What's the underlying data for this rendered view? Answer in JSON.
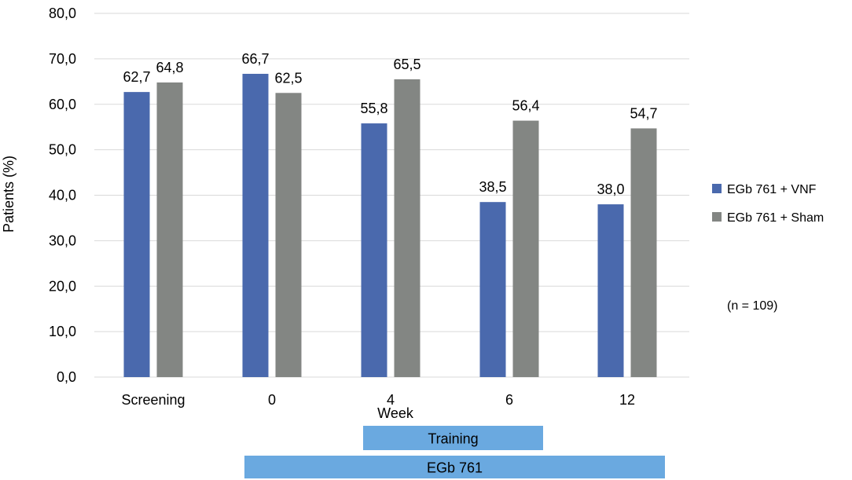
{
  "chart_data": {
    "type": "bar",
    "categories": [
      "Screening",
      "0",
      "4",
      "6",
      "12"
    ],
    "series": [
      {
        "name": "EGb 761 + VNF",
        "color": "#4a69ad",
        "values": [
          62.7,
          66.7,
          55.8,
          38.5,
          38.0
        ]
      },
      {
        "name": "EGb 761 + Sham",
        "color": "#838683",
        "values": [
          64.8,
          62.5,
          65.5,
          56.4,
          54.7
        ]
      }
    ],
    "value_labels": [
      [
        "62,7",
        "66,7",
        "55,8",
        "38,5",
        "38,0"
      ],
      [
        "64,8",
        "62,5",
        "65,5",
        "56,4",
        "54,7"
      ]
    ],
    "xlabel": "Week",
    "ylabel": "Patients (%)",
    "ylim": [
      0,
      80
    ],
    "yticks": [
      0,
      10,
      20,
      30,
      40,
      50,
      60,
      70,
      80
    ],
    "ytick_labels": [
      "0,0",
      "10,0",
      "20,0",
      "30,0",
      "40,0",
      "50,0",
      "60,0",
      "70,0",
      "80,0"
    ],
    "grid": true,
    "legend_position": "right",
    "annotation": "(n = 109)",
    "period_bars": [
      {
        "label": "Training",
        "from_category": "4",
        "to_category": "6",
        "color": "#6aa9e0"
      },
      {
        "label": "EGb 761",
        "from_category": "0",
        "to_category": "12",
        "color": "#6aa9e0"
      }
    ]
  }
}
